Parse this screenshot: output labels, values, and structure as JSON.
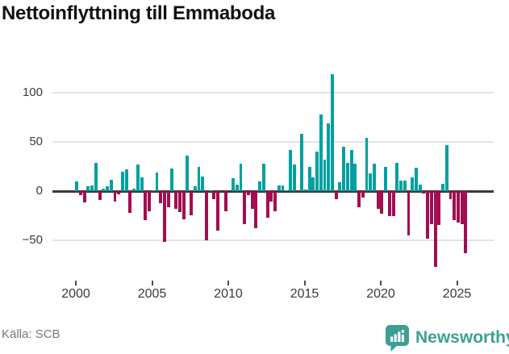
{
  "title": "Nettoinflyttning till Emmaboda",
  "footer": {
    "source_label": "Källa: SCB",
    "brand": "Newsworthy"
  },
  "colors": {
    "positive": "#00a0a0",
    "negative": "#a30d52",
    "grid": "#e3e3e3",
    "zero_axis": "#3a3a3a",
    "tick_label": "#3a3a3a",
    "title": "#111111",
    "source_text": "#787878",
    "brand_teal": "#3ba093"
  },
  "y_axis": {
    "ticks": [
      100,
      50,
      0,
      -50
    ]
  },
  "x_axis": {
    "ticks": [
      2000,
      2005,
      2010,
      2015,
      2020,
      2025
    ]
  },
  "chart_data": {
    "type": "bar",
    "title": "Nettoinflyttning till Emmaboda",
    "xlabel": "",
    "ylabel": "",
    "frequency": "quarterly",
    "x_start": "2000 Q1",
    "x_end": "2025 Q3",
    "ylim": [
      -90,
      125
    ],
    "grid": true,
    "legend": false,
    "positive_color": "#00a0a0",
    "negative_color": "#a30d52",
    "values": [
      10,
      -4,
      -11,
      5,
      6,
      29,
      -9,
      3,
      5,
      12,
      -10,
      -3,
      20,
      22,
      -22,
      3,
      27,
      14,
      -29,
      -20,
      1,
      19,
      -12,
      -51,
      -16,
      23,
      -18,
      -21,
      -28,
      36,
      -24,
      5,
      25,
      15,
      -50,
      1,
      -8,
      -40,
      0,
      -20,
      0,
      13,
      7,
      28,
      -33,
      -4,
      -18,
      -37,
      10,
      28,
      -27,
      -10,
      -20,
      6,
      6,
      1,
      42,
      27,
      -1,
      58,
      2,
      25,
      14,
      40,
      78,
      32,
      69,
      119,
      -8,
      9,
      45,
      29,
      42,
      28,
      -16,
      -6,
      54,
      18,
      28,
      -18,
      -23,
      25,
      -25,
      -25,
      29,
      11,
      11,
      -45,
      14,
      24,
      7,
      -2,
      -48,
      -33,
      -77,
      -34,
      8,
      47,
      -8,
      -29,
      -32,
      -33,
      -63
    ]
  }
}
